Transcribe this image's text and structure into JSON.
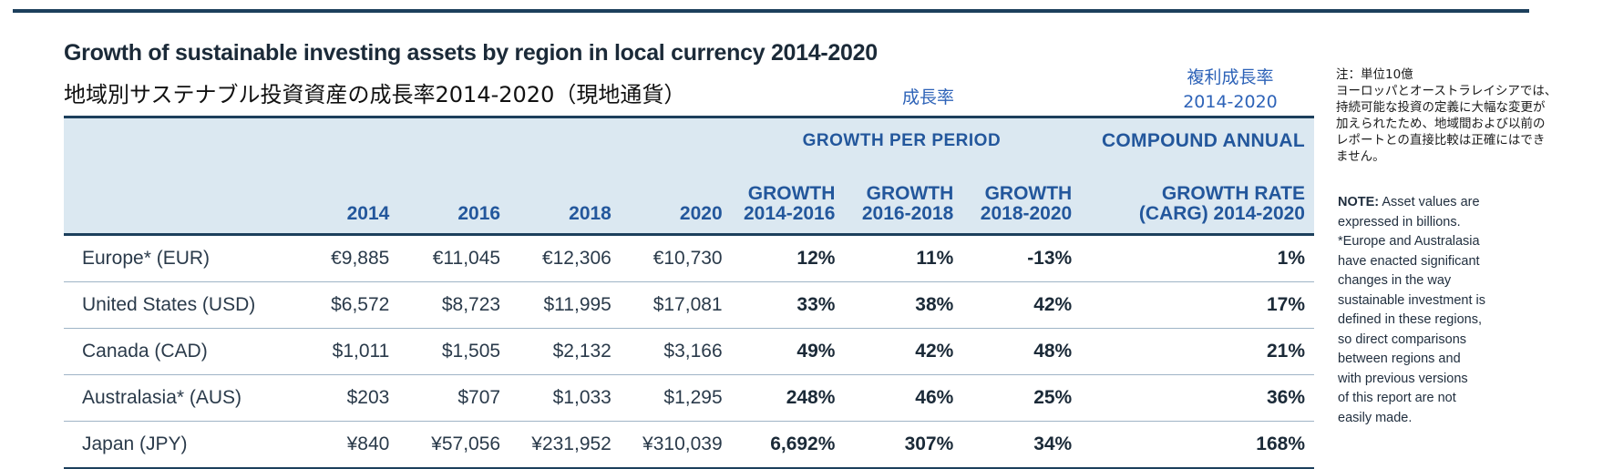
{
  "title_en": "Growth of sustainable investing assets by region in local currency 2014-2020",
  "title_ja": "地域別サステナブル投資資産の成長率2014-2020（現地通貨）",
  "label_growth_ja": "成長率",
  "label_cagr_ja_line1": "複利成長率",
  "label_cagr_ja_line2": "2014-2020",
  "header": {
    "growth_per_period": "GROWTH PER PERIOD",
    "cagr_line1": "COMPOUND ANNUAL",
    "cagr_line2": "GROWTH RATE",
    "cagr_line3": "(CARG) 2014-2020",
    "columns": [
      "2014",
      "2016",
      "2018",
      "2020"
    ],
    "growth_cols": [
      {
        "line1": "GROWTH",
        "line2": "2014-2016"
      },
      {
        "line1": "GROWTH",
        "line2": "2016-2018"
      },
      {
        "line1": "GROWTH",
        "line2": "2018-2020"
      }
    ]
  },
  "rows": [
    {
      "region": "Europe* (EUR)",
      "v2014": "€9,885",
      "v2016": "€11,045",
      "v2018": "€12,306",
      "v2020": "€10,730",
      "g1": "12%",
      "g2": "11%",
      "g3": "-13%",
      "cagr": "1%"
    },
    {
      "region": "United States (USD)",
      "v2014": "$6,572",
      "v2016": "$8,723",
      "v2018": "$11,995",
      "v2020": "$17,081",
      "g1": "33%",
      "g2": "38%",
      "g3": "42%",
      "cagr": "17%"
    },
    {
      "region": "Canada (CAD)",
      "v2014": "$1,011",
      "v2016": "$1,505",
      "v2018": "$2,132",
      "v2020": "$3,166",
      "g1": "49%",
      "g2": "42%",
      "g3": "48%",
      "cagr": "21%"
    },
    {
      "region": "Australasia* (AUS)",
      "v2014": "$203",
      "v2016": "$707",
      "v2018": "$1,033",
      "v2020": "$1,295",
      "g1": "248%",
      "g2": "46%",
      "g3": "25%",
      "cagr": "36%"
    },
    {
      "region": "Japan (JPY)",
      "v2014": "¥840",
      "v2016": "¥57,056",
      "v2018": "¥231,952",
      "v2020": "¥310,039",
      "g1": "6,692%",
      "g2": "307%",
      "g3": "34%",
      "cagr": "168%"
    }
  ],
  "note_ja": [
    "注：単位10億",
    "ヨーロッパとオーストラレイシアでは、",
    "持続可能な投資の定義に大幅な変更が",
    "加えられたため、地域間および以前の",
    "レポートとの直接比較は正確にはでき",
    "ません。"
  ],
  "note_en_label": "NOTE:",
  "note_en_lines": [
    " Asset values are",
    "expressed in billions.",
    "*Europe and Australasia",
    "have enacted significant",
    "changes in the way",
    "sustainable investment is",
    "defined in these regions,",
    "so direct comparisons",
    "between regions and",
    "with previous versions",
    "of this report are not",
    "easily made."
  ]
}
